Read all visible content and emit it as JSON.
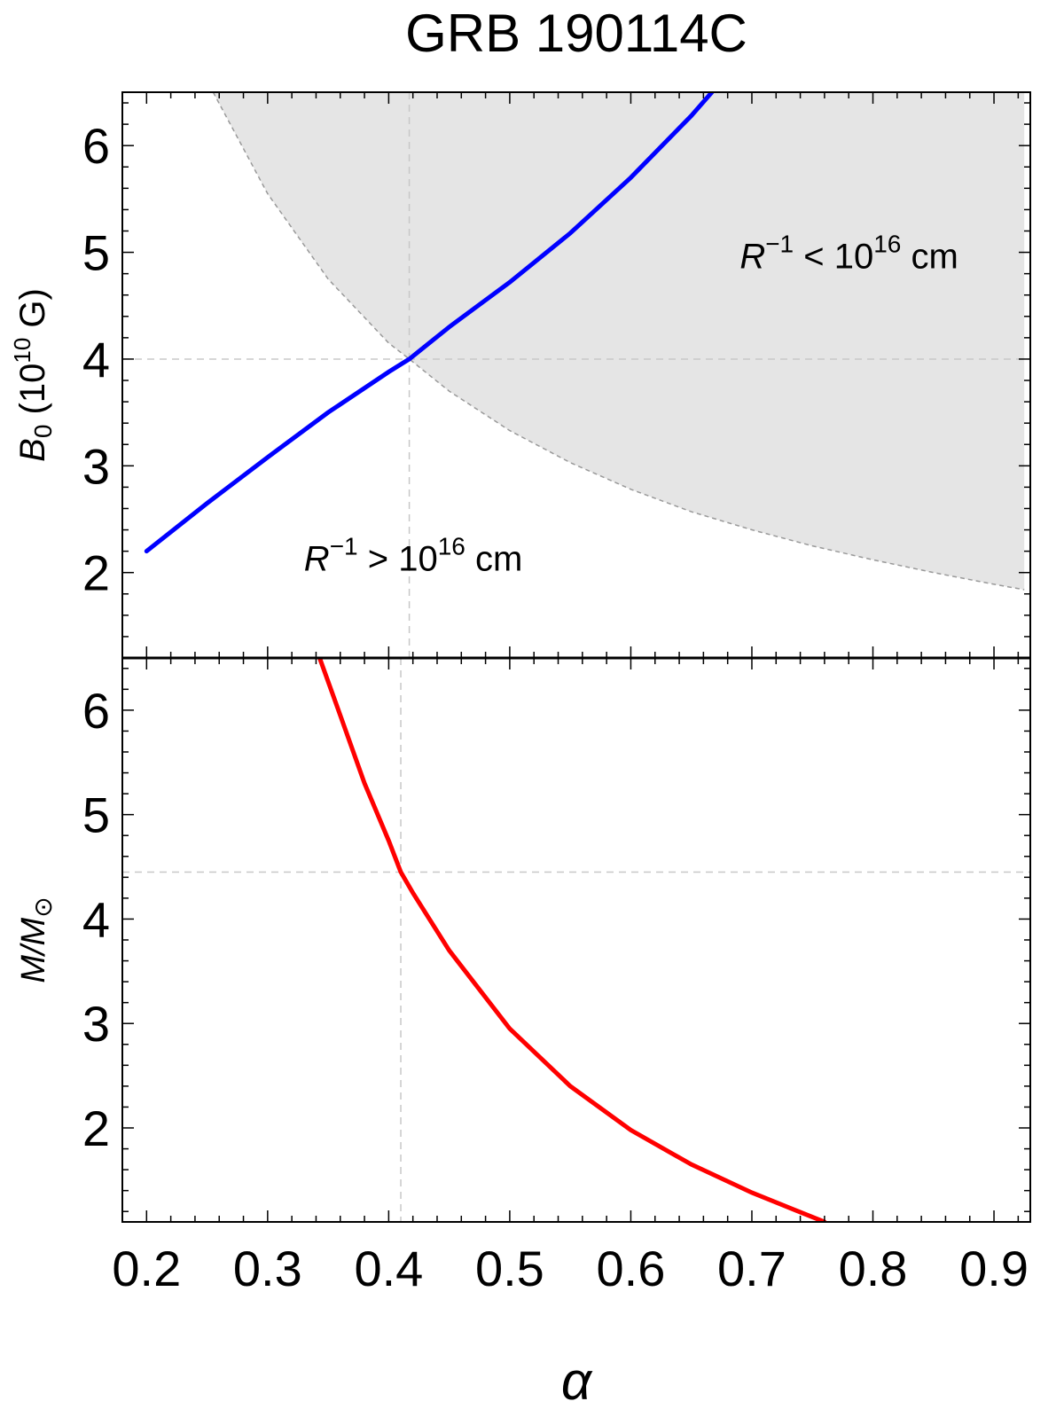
{
  "chart_data": {
    "title": "GRB 190114C",
    "type": "line",
    "xlabel": "α",
    "xlim": [
      0.18,
      0.93
    ],
    "x_ticks": [
      "0.2",
      "0.3",
      "0.4",
      "0.5",
      "0.6",
      "0.7",
      "0.8",
      "0.9"
    ],
    "panels": [
      {
        "name": "top",
        "ylabel": {
          "main": "B",
          "sub": "0",
          "rest": " (10",
          "sup": "10",
          "tail": " G)"
        },
        "ylim": [
          1.2,
          6.5
        ],
        "y_ticks": [
          "2",
          "3",
          "4",
          "5",
          "6"
        ],
        "series": [
          {
            "name": "B0 vs alpha",
            "color": "#0000ff",
            "x": [
              0.2,
              0.25,
              0.3,
              0.35,
              0.4,
              0.417,
              0.45,
              0.5,
              0.55,
              0.6,
              0.65,
              0.667
            ],
            "y": [
              2.2,
              2.65,
              3.08,
              3.5,
              3.88,
              4.0,
              4.3,
              4.72,
              5.18,
              5.7,
              6.28,
              6.5
            ]
          }
        ],
        "shaded_region": {
          "color": "#e5e5e5",
          "boundary_x": [
            0.255,
            0.3,
            0.35,
            0.4,
            0.417,
            0.45,
            0.5,
            0.55,
            0.6,
            0.65,
            0.7,
            0.75,
            0.8,
            0.85,
            0.9,
            0.925
          ],
          "boundary_y": [
            6.5,
            5.55,
            4.75,
            4.15,
            4.0,
            3.7,
            3.33,
            3.03,
            2.78,
            2.57,
            2.4,
            2.25,
            2.12,
            2.0,
            1.89,
            1.84
          ],
          "x_end": 0.925
        },
        "reference_lines": {
          "x": 0.417,
          "y": 4.0
        },
        "annotations": [
          {
            "name": "upper-region",
            "base": "R",
            "sup1": "−1",
            "mid": " < 10",
            "sup2": "16",
            "tail": " cm",
            "x": 0.69,
            "y": 4.85
          },
          {
            "name": "lower-region",
            "base": "R",
            "sup1": "−1",
            "mid": " > 10",
            "sup2": "16",
            "tail": " cm",
            "x": 0.33,
            "y": 2.02
          }
        ]
      },
      {
        "name": "bottom",
        "ylabel": {
          "main": "M/M",
          "sub": "⊙"
        },
        "ylim": [
          1.1,
          6.5
        ],
        "y_ticks": [
          "2",
          "3",
          "4",
          "5",
          "6"
        ],
        "series": [
          {
            "name": "M vs alpha",
            "color": "#ff0000",
            "x": [
              0.343,
              0.36,
              0.38,
              0.4,
              0.41,
              0.42,
              0.45,
              0.5,
              0.55,
              0.6,
              0.65,
              0.7,
              0.76
            ],
            "y": [
              6.5,
              5.95,
              5.3,
              4.75,
              4.45,
              4.25,
              3.7,
              2.95,
              2.4,
              1.98,
              1.65,
              1.38,
              1.1
            ]
          }
        ],
        "reference_lines": {
          "x": 0.41,
          "y": 4.45
        }
      }
    ]
  }
}
